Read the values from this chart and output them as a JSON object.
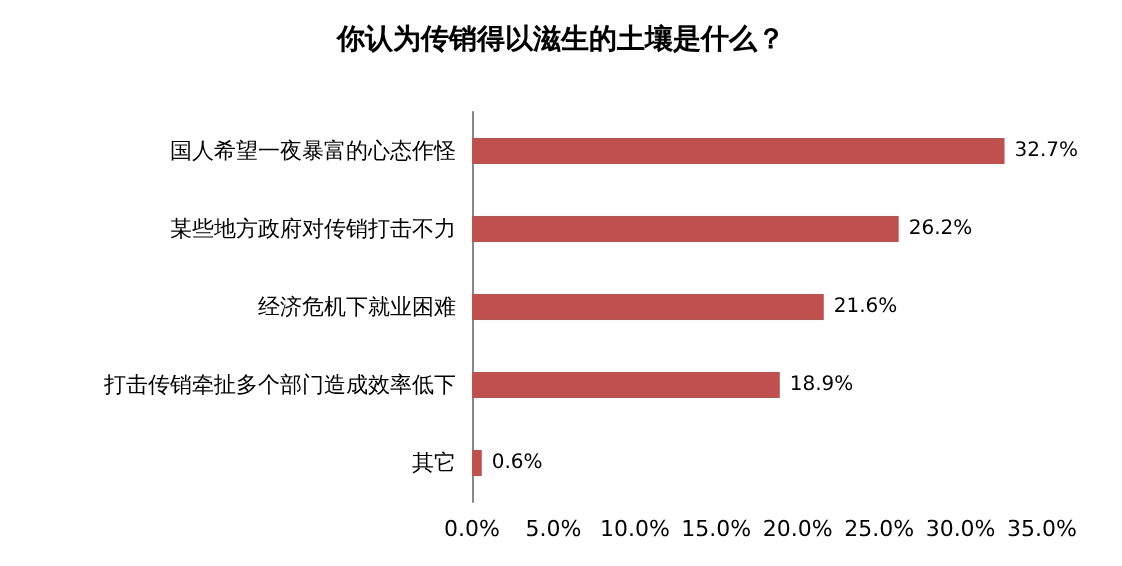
{
  "chart_data": {
    "type": "bar",
    "orientation": "horizontal",
    "title": "你认为传销得以滋生的土壤是什么？",
    "categories": [
      "国人希望一夜暴富的心态作怪",
      "某些地方政府对传销打击不力",
      "经济危机下就业困难",
      "打击传销牵扯多个部门造成效率低下",
      "其它"
    ],
    "values": [
      32.7,
      26.2,
      21.6,
      18.9,
      0.6
    ],
    "value_labels": [
      "32.7%",
      "26.2%",
      "21.6%",
      "18.9%",
      "0.6%"
    ],
    "color": "#c0504d",
    "xlim": [
      0,
      35
    ],
    "xticks": [
      {
        "value": 0,
        "label": "0.0%"
      },
      {
        "value": 5,
        "label": "5.0%"
      },
      {
        "value": 10,
        "label": "10.0%"
      },
      {
        "value": 15,
        "label": "15.0%"
      },
      {
        "value": 20,
        "label": "20.0%"
      },
      {
        "value": 25,
        "label": "25.0%"
      },
      {
        "value": 30,
        "label": "30.0%"
      },
      {
        "value": 35,
        "label": "35.0%"
      }
    ],
    "grid": false
  }
}
